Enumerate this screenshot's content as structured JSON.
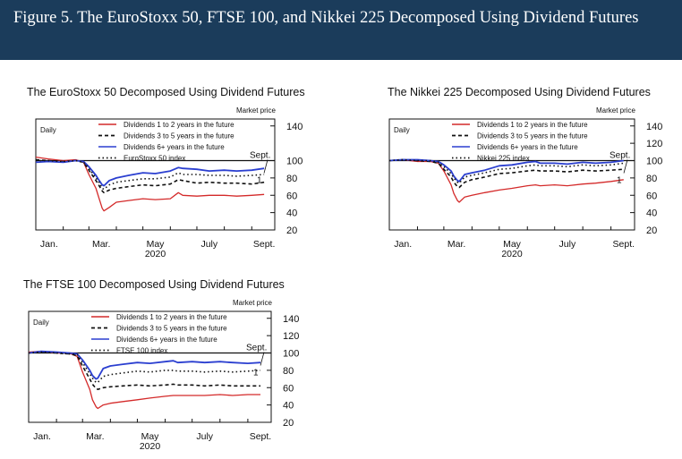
{
  "figure_title": "Figure 5. The EuroStoxx 50, FTSE 100, and Nikkei 225 Decomposed Using Dividend Futures",
  "chart_data": [
    {
      "type": "line",
      "title": "The EuroStoxx 50 Decomposed Using Dividend Futures",
      "ylabel": "Market price",
      "frequency_label": "Daily",
      "x_tick_labels": [
        "Jan.",
        "Mar.",
        "May",
        "July",
        "Sept."
      ],
      "year_label": "2020",
      "y_ticks": [
        20,
        40,
        60,
        80,
        100,
        140
      ],
      "ylim": [
        20,
        148
      ],
      "x": [
        "Jan 1",
        "Jan 15",
        "Feb 1",
        "Feb 15",
        "Feb 24",
        "Mar 1",
        "Mar 9",
        "Mar 12",
        "Mar 16",
        "Mar 18",
        "Mar 24",
        "Apr 1",
        "Apr 15",
        "May 1",
        "May 15",
        "Jun 1",
        "Jun 10",
        "Jun 15",
        "Jul 1",
        "Jul 15",
        "Aug 1",
        "Aug 15",
        "Sep 1",
        "Sep 15"
      ],
      "series": [
        {
          "name": "Dividends 1 to 2 years in the future",
          "color": "#d42a2a",
          "style": "solid",
          "values": [
            104,
            102,
            100,
            101,
            98,
            84,
            68,
            58,
            45,
            42,
            46,
            52,
            54,
            56,
            55,
            56,
            63,
            60,
            59,
            60,
            60,
            59,
            60,
            61
          ]
        },
        {
          "name": "Dividends 3 to 5 years in the future",
          "color": "#111111",
          "style": "dashed",
          "values": [
            101,
            100,
            99,
            100,
            98,
            89,
            77,
            72,
            65,
            63,
            66,
            68,
            70,
            72,
            71,
            73,
            78,
            77,
            74,
            75,
            74,
            74,
            73,
            75
          ]
        },
        {
          "name": "Dividends 6+ years in the future",
          "color": "#2b3fd0",
          "style": "solid",
          "values": [
            98,
            99,
            98,
            100,
            99,
            93,
            83,
            78,
            72,
            71,
            77,
            80,
            83,
            86,
            85,
            88,
            92,
            91,
            90,
            88,
            89,
            88,
            89,
            91
          ]
        },
        {
          "name": "EuroStoxx 50 index",
          "color": "#111111",
          "style": "dotted",
          "values": [
            100,
            100,
            99,
            100,
            98,
            91,
            80,
            76,
            68,
            67,
            72,
            75,
            77,
            79,
            79,
            81,
            86,
            84,
            84,
            83,
            83,
            82,
            83,
            84
          ]
        }
      ],
      "annotations": [
        "Sept.",
        "1"
      ]
    },
    {
      "type": "line",
      "title": "The Nikkei 225 Decomposed Using Dividend Futures",
      "ylabel": "Market price",
      "frequency_label": "Daily",
      "x_tick_labels": [
        "Jan.",
        "Mar.",
        "May",
        "July",
        "Sept."
      ],
      "year_label": "2020",
      "y_ticks": [
        20,
        40,
        60,
        80,
        100,
        120,
        140
      ],
      "ylim": [
        20,
        148
      ],
      "x": [
        "Jan 1",
        "Jan 15",
        "Feb 1",
        "Feb 15",
        "Feb 24",
        "Mar 1",
        "Mar 9",
        "Mar 12",
        "Mar 16",
        "Mar 18",
        "Mar 24",
        "Apr 1",
        "Apr 15",
        "May 1",
        "May 15",
        "Jun 1",
        "Jun 10",
        "Jun 15",
        "Jul 1",
        "Jul 15",
        "Aug 1",
        "Aug 15",
        "Sep 1",
        "Sep 15"
      ],
      "series": [
        {
          "name": "Dividends 1 to 2 years in the future",
          "color": "#d42a2a",
          "style": "solid",
          "values": [
            100,
            101,
            99,
            99,
            97,
            88,
            72,
            62,
            54,
            52,
            58,
            60,
            63,
            66,
            68,
            71,
            72,
            71,
            72,
            71,
            73,
            74,
            76,
            78
          ]
        },
        {
          "name": "Dividends 3 to 5 years in the future",
          "color": "#111111",
          "style": "dashed",
          "values": [
            100,
            101,
            100,
            99,
            97,
            90,
            81,
            75,
            70,
            69,
            75,
            78,
            81,
            85,
            86,
            88,
            89,
            88,
            88,
            87,
            89,
            88,
            89,
            90
          ]
        },
        {
          "name": "Dividends 6+ years in the future",
          "color": "#2b3fd0",
          "style": "solid",
          "values": [
            100,
            101,
            101,
            100,
            99,
            95,
            88,
            82,
            77,
            76,
            84,
            86,
            89,
            94,
            95,
            98,
            99,
            97,
            97,
            96,
            98,
            97,
            98,
            100
          ]
        },
        {
          "name": "Nikkei 225 index",
          "color": "#111111",
          "style": "dotted",
          "values": [
            100,
            101,
            100,
            100,
            98,
            93,
            85,
            80,
            75,
            74,
            81,
            83,
            86,
            90,
            91,
            94,
            95,
            94,
            94,
            93,
            95,
            94,
            95,
            97
          ]
        }
      ],
      "annotations": [
        "Sept.",
        "1"
      ]
    },
    {
      "type": "line",
      "title": "The FTSE 100 Decomposed Using Dividend Futures",
      "ylabel": "Market price",
      "frequency_label": "Daily",
      "x_tick_labels": [
        "Jan.",
        "Mar.",
        "May",
        "July",
        "Sept."
      ],
      "year_label": "2020",
      "y_ticks": [
        20,
        40,
        60,
        80,
        100,
        120,
        140
      ],
      "ylim": [
        20,
        148
      ],
      "x": [
        "Jan 1",
        "Jan 15",
        "Feb 1",
        "Feb 15",
        "Feb 24",
        "Mar 1",
        "Mar 9",
        "Mar 12",
        "Mar 16",
        "Mar 18",
        "Mar 24",
        "Apr 1",
        "Apr 15",
        "May 1",
        "May 15",
        "Jun 1",
        "Jun 10",
        "Jun 15",
        "Jul 1",
        "Jul 15",
        "Aug 1",
        "Aug 15",
        "Sep 1",
        "Sep 15"
      ],
      "series": [
        {
          "name": "Dividends 1 to 2 years in the future",
          "color": "#d42a2a",
          "style": "solid",
          "values": [
            101,
            102,
            100,
            100,
            96,
            78,
            58,
            46,
            38,
            36,
            40,
            42,
            44,
            46,
            48,
            50,
            51,
            51,
            51,
            51,
            52,
            51,
            52,
            52
          ]
        },
        {
          "name": "Dividends 3 to 5 years in the future",
          "color": "#111111",
          "style": "dashed",
          "values": [
            100,
            101,
            100,
            99,
            97,
            85,
            70,
            64,
            59,
            58,
            60,
            61,
            62,
            63,
            62,
            63,
            64,
            63,
            63,
            62,
            63,
            62,
            62,
            62
          ]
        },
        {
          "name": "Dividends 6+ years in the future",
          "color": "#2b3fd0",
          "style": "solid",
          "values": [
            100,
            102,
            101,
            100,
            99,
            92,
            80,
            74,
            70,
            71,
            82,
            85,
            87,
            89,
            88,
            90,
            91,
            89,
            90,
            89,
            90,
            89,
            88,
            89
          ]
        },
        {
          "name": "FTSE 100 index",
          "color": "#111111",
          "style": "dotted",
          "values": [
            100,
            101,
            100,
            99,
            98,
            89,
            76,
            71,
            66,
            66,
            73,
            75,
            77,
            79,
            78,
            80,
            80,
            79,
            79,
            78,
            79,
            78,
            79,
            80
          ]
        }
      ],
      "annotations": [
        "Sept.",
        "1"
      ]
    }
  ]
}
